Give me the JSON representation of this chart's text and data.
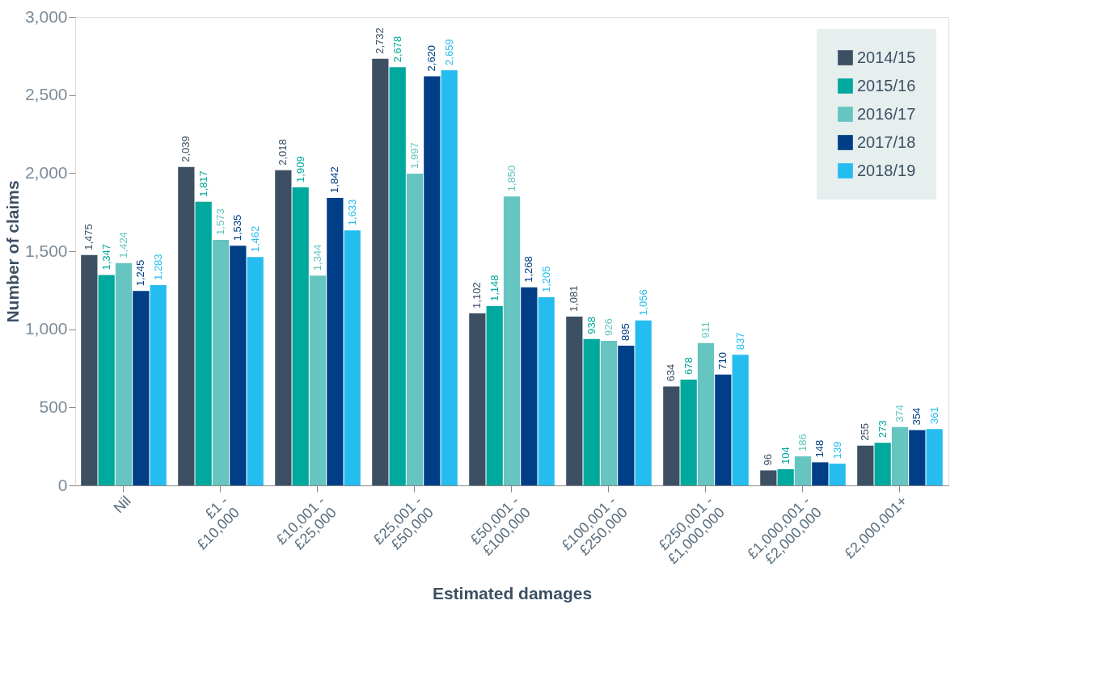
{
  "chart_data": {
    "type": "bar",
    "xlabel": "Estimated damages",
    "ylabel": "Number of claims",
    "categories": [
      "Nil",
      "£1 - £10,000",
      "£10,001 - £25,000",
      "£25,001 - £50,000",
      "£50,001 - £100,000",
      "£100,001 - £250,000",
      "£250,001 - £1,000,000",
      "£1,000,001 - £2,000,000",
      "£2,000,001+"
    ],
    "series": [
      {
        "name": "2014/15",
        "color": "#3d5063",
        "values": [
          1475,
          2039,
          2018,
          2732,
          1102,
          1081,
          634,
          96,
          255
        ],
        "value_labels": [
          "1,475",
          "2,039",
          "2,018",
          "2,732",
          "1,102",
          "1,081",
          "634",
          "96",
          "255"
        ]
      },
      {
        "name": "2015/16",
        "color": "#00a99d",
        "values": [
          1347,
          1817,
          1909,
          2678,
          1148,
          938,
          678,
          104,
          273
        ],
        "value_labels": [
          "1,347",
          "1,817",
          "1,909",
          "2,678",
          "1,148",
          "938",
          "678",
          "104",
          "273"
        ]
      },
      {
        "name": "2016/17",
        "color": "#66c5c0",
        "values": [
          1424,
          1573,
          1344,
          1997,
          1850,
          926,
          911,
          186,
          374
        ],
        "value_labels": [
          "1,424",
          "1,573",
          "1,344",
          "1,997",
          "1,850",
          "926",
          "911",
          "186",
          "374"
        ]
      },
      {
        "name": "2017/18",
        "color": "#003f87",
        "values": [
          1245,
          1535,
          1842,
          2620,
          1268,
          895,
          710,
          148,
          354
        ],
        "value_labels": [
          "1,245",
          "1,535",
          "1,842",
          "2,620",
          "1,268",
          "895",
          "710",
          "148",
          "354"
        ]
      },
      {
        "name": "2018/19",
        "color": "#25bdef",
        "values": [
          1283,
          1462,
          1633,
          2659,
          1205,
          1056,
          837,
          139,
          361
        ],
        "value_labels": [
          "1,283",
          "1,462",
          "1,633",
          "2,659",
          "1,205",
          "1,056",
          "837",
          "139",
          "361"
        ]
      }
    ],
    "ylim": [
      0,
      3000
    ],
    "yticks": [
      0,
      {
        "value": 500,
        "label": "500"
      },
      {
        "value": 1000,
        "label": "1,000"
      },
      {
        "value": 1500,
        "label": "1,500"
      },
      {
        "value": 2000,
        "label": "2,000"
      },
      {
        "value": 2500,
        "label": "2,500"
      },
      {
        "value": 3000,
        "label": "3,000"
      }
    ],
    "grid": false,
    "legend": "top right"
  }
}
